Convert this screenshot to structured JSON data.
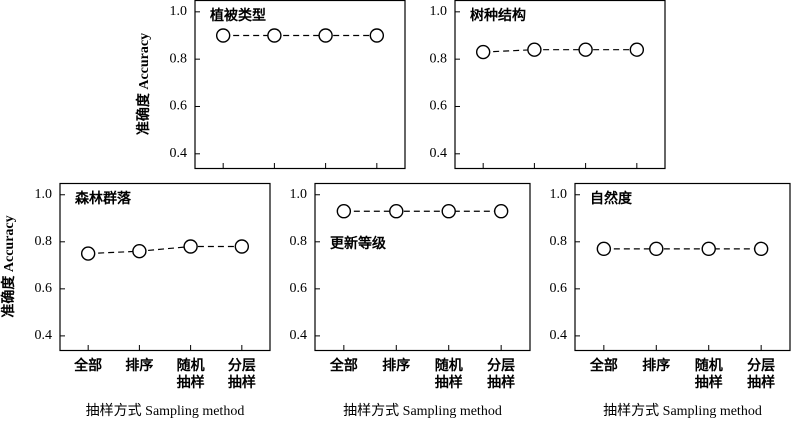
{
  "chart_data": [
    {
      "type": "line",
      "title": "植被类型",
      "ylabel": "准确度 Accuracy",
      "categories": [
        null,
        null,
        null,
        null
      ],
      "values": [
        0.9,
        0.9,
        0.9,
        0.9
      ],
      "color": "#000000",
      "linestyle": "dashed",
      "marker": "open-circle",
      "ylim": [
        0.34,
        1.05
      ],
      "yticks": [
        {
          "value": 1.0,
          "label": "1.0"
        },
        0.8,
        0.6,
        0.4
      ]
    },
    {
      "type": "line",
      "title": "树种结构",
      "categories": [
        null,
        null,
        null,
        null
      ],
      "values": [
        0.83,
        0.84,
        0.84,
        0.84
      ],
      "color": "#000000",
      "linestyle": "dashed",
      "marker": "open-circle",
      "ylim": [
        0.34,
        1.05
      ],
      "yticks": [
        {
          "value": 1.0,
          "label": "1.0"
        },
        0.8,
        0.6,
        0.4
      ]
    },
    {
      "type": "line",
      "title": "森林群落",
      "ylabel": "准确度 Accuracy",
      "xlabel": "抽样方式 Sampling method",
      "categories": [
        "全部",
        "排序",
        "随机\n抽样",
        "分层\n抽样"
      ],
      "values": [
        0.75,
        0.76,
        0.78,
        0.78
      ],
      "color": "#000000",
      "linestyle": "dashed",
      "marker": "open-circle",
      "ylim": [
        0.34,
        1.05
      ],
      "yticks": [
        {
          "value": 1.0,
          "label": "1.0"
        },
        0.8,
        0.6,
        0.4
      ]
    },
    {
      "type": "line",
      "title": "更新等级",
      "xlabel": "抽样方式 Sampling method",
      "categories": [
        "全部",
        "排序",
        "随机\n抽样",
        "分层\n抽样"
      ],
      "values": [
        0.93,
        0.93,
        0.93,
        0.93
      ],
      "color": "#000000",
      "linestyle": "dashed",
      "marker": "open-circle",
      "ylim": [
        0.34,
        1.05
      ],
      "yticks": [
        {
          "value": 1.0,
          "label": "1.0"
        },
        0.8,
        0.6,
        0.4
      ]
    },
    {
      "type": "line",
      "title": "自然度",
      "xlabel": "抽样方式 Sampling method",
      "categories": [
        "全部",
        "排序",
        "随机\n抽样",
        "分层\n抽样"
      ],
      "values": [
        0.77,
        0.77,
        0.77,
        0.77
      ],
      "color": "#000000",
      "linestyle": "dashed",
      "marker": "open-circle",
      "ylim": [
        0.34,
        1.05
      ],
      "yticks": [
        {
          "value": 1.0,
          "label": "1.0"
        },
        0.8,
        0.6,
        0.4
      ]
    }
  ]
}
